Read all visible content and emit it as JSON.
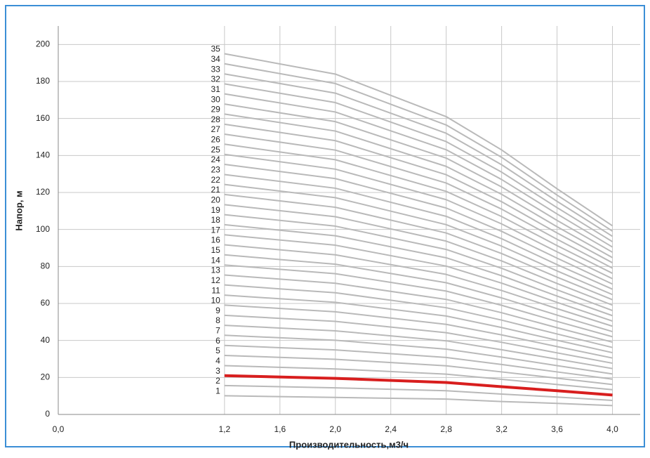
{
  "chart_data": {
    "type": "line",
    "xlabel": "Производительность,м3/ч",
    "ylabel": "Напор, м",
    "x": [
      1.2,
      2.0,
      2.8,
      3.2,
      3.6,
      4.0
    ],
    "xlim": [
      0,
      4.2
    ],
    "xticks": [
      {
        "value": 0,
        "label": "0,0"
      },
      {
        "value": 1.2,
        "label": "1,2"
      },
      {
        "value": 1.6,
        "label": "1,6"
      },
      {
        "value": 2.0,
        "label": "2,0"
      },
      {
        "value": 2.4,
        "label": "2,4"
      },
      {
        "value": 2.8,
        "label": "2,8"
      },
      {
        "value": 3.2,
        "label": "3,2"
      },
      {
        "value": 3.6,
        "label": "3,6"
      },
      {
        "value": 4.0,
        "label": "4,0"
      }
    ],
    "ylim": [
      0,
      210
    ],
    "yticks": [
      0,
      20,
      40,
      60,
      80,
      100,
      120,
      140,
      160,
      180,
      200
    ],
    "grid": true,
    "series": [
      {
        "name": "1",
        "color": "#b9b9b9",
        "values": [
          10.1,
          9.2,
          8.3,
          7,
          6.0,
          4.8
        ]
      },
      {
        "name": "2",
        "color": "#b9b9b9",
        "values": [
          15.6,
          14.4,
          12.8,
          11,
          9.4,
          7.6
        ]
      },
      {
        "name": "3",
        "color": "#d81e1e",
        "values": [
          21.0,
          19.5,
          17.3,
          15,
          12.8,
          10.5
        ]
      },
      {
        "name": "4",
        "color": "#b9b9b9",
        "values": [
          26.4,
          24.6,
          21.8,
          19,
          16.2,
          13.4
        ]
      },
      {
        "name": "5",
        "color": "#b9b9b9",
        "values": [
          31.9,
          29.8,
          26.3,
          23,
          19.6,
          16.2
        ]
      },
      {
        "name": "6",
        "color": "#b9b9b9",
        "values": [
          37.3,
          34.9,
          30.8,
          27,
          23.0,
          19.1
        ]
      },
      {
        "name": "7",
        "color": "#b9b9b9",
        "values": [
          42.8,
          40.1,
          35.3,
          31,
          26.4,
          21.9
        ]
      },
      {
        "name": "8",
        "color": "#b9b9b9",
        "values": [
          48.2,
          45.2,
          39.8,
          35,
          29.9,
          24.8
        ]
      },
      {
        "name": "9",
        "color": "#b9b9b9",
        "values": [
          53.6,
          50.3,
          44.2,
          39,
          33.3,
          27.7
        ]
      },
      {
        "name": "10",
        "color": "#b9b9b9",
        "values": [
          59.1,
          55.5,
          48.7,
          43,
          36.7,
          30.5
        ]
      },
      {
        "name": "11",
        "color": "#b9b9b9",
        "values": [
          64.5,
          60.6,
          53.2,
          47,
          40.1,
          33.4
        ]
      },
      {
        "name": "12",
        "color": "#b9b9b9",
        "values": [
          70.0,
          65.8,
          57.7,
          51,
          43.5,
          36.2
        ]
      },
      {
        "name": "13",
        "color": "#b9b9b9",
        "values": [
          75.4,
          70.9,
          62.2,
          55,
          46.9,
          39.1
        ]
      },
      {
        "name": "14",
        "color": "#b9b9b9",
        "values": [
          80.8,
          76.1,
          66.7,
          59,
          50.3,
          42.0
        ]
      },
      {
        "name": "15",
        "color": "#b9b9b9",
        "values": [
          86.3,
          81.2,
          71.2,
          63,
          53.7,
          44.8
        ]
      },
      {
        "name": "16",
        "color": "#b9b9b9",
        "values": [
          91.7,
          86.3,
          75.7,
          67,
          57.2,
          47.7
        ]
      },
      {
        "name": "17",
        "color": "#b9b9b9",
        "values": [
          97.1,
          91.5,
          80.2,
          71,
          60.6,
          50.5
        ]
      },
      {
        "name": "18",
        "color": "#b9b9b9",
        "values": [
          102.6,
          96.6,
          84.7,
          75,
          64.0,
          53.4
        ]
      },
      {
        "name": "19",
        "color": "#b9b9b9",
        "values": [
          108.0,
          101.8,
          89.2,
          79,
          67.4,
          56.2
        ]
      },
      {
        "name": "20",
        "color": "#b9b9b9",
        "values": [
          113.4,
          106.9,
          93.7,
          83,
          70.8,
          59.1
        ]
      },
      {
        "name": "21",
        "color": "#b9b9b9",
        "values": [
          118.9,
          112.0,
          98.1,
          87,
          74.2,
          62.0
        ]
      },
      {
        "name": "22",
        "color": "#b9b9b9",
        "values": [
          124.3,
          117.2,
          102.6,
          91,
          77.6,
          64.8
        ]
      },
      {
        "name": "23",
        "color": "#b9b9b9",
        "values": [
          129.7,
          122.3,
          107.1,
          95,
          81.0,
          67.7
        ]
      },
      {
        "name": "24",
        "color": "#b9b9b9",
        "values": [
          135.2,
          127.5,
          111.6,
          99,
          84.5,
          70.5
        ]
      },
      {
        "name": "25",
        "color": "#b9b9b9",
        "values": [
          140.6,
          132.6,
          116.1,
          103,
          87.9,
          73.4
        ]
      },
      {
        "name": "26",
        "color": "#b9b9b9",
        "values": [
          146.1,
          137.7,
          120.6,
          107,
          91.3,
          76.3
        ]
      },
      {
        "name": "27",
        "color": "#b9b9b9",
        "values": [
          151.5,
          142.9,
          125.1,
          111,
          94.7,
          79.1
        ]
      },
      {
        "name": "28",
        "color": "#b9b9b9",
        "values": [
          156.9,
          148.0,
          129.6,
          115,
          98.1,
          82.0
        ]
      },
      {
        "name": "29",
        "color": "#b9b9b9",
        "values": [
          162.4,
          153.2,
          134.1,
          119,
          101.5,
          84.8
        ]
      },
      {
        "name": "30",
        "color": "#b9b9b9",
        "values": [
          167.8,
          158.3,
          138.6,
          123,
          104.9,
          87.7
        ]
      },
      {
        "name": "31",
        "color": "#b9b9b9",
        "values": [
          173.3,
          163.5,
          143.1,
          127,
          108.4,
          90.5
        ]
      },
      {
        "name": "32",
        "color": "#b9b9b9",
        "values": [
          178.7,
          168.6,
          147.5,
          131,
          111.8,
          93.4
        ]
      },
      {
        "name": "33",
        "color": "#b9b9b9",
        "values": [
          184.1,
          173.7,
          152.0,
          135,
          115.2,
          96.3
        ]
      },
      {
        "name": "34",
        "color": "#b9b9b9",
        "values": [
          189.6,
          178.9,
          156.5,
          139,
          118.6,
          99.1
        ]
      },
      {
        "name": "35",
        "color": "#b9b9b9",
        "values": [
          195.0,
          184.0,
          161.0,
          143,
          122.0,
          102.0
        ]
      }
    ]
  }
}
